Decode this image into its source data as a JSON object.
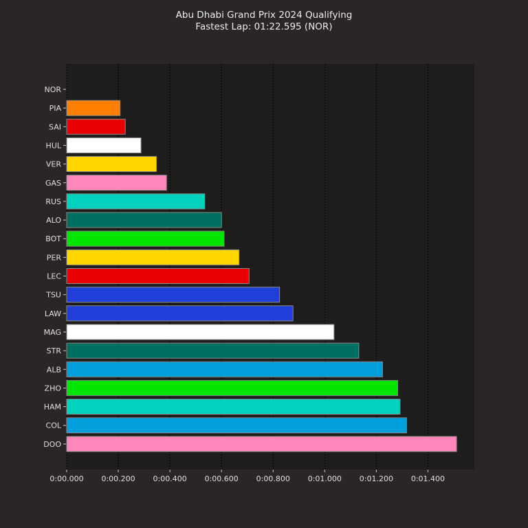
{
  "chart_data": {
    "type": "bar",
    "orientation": "horizontal",
    "title": "Abu Dhabi Grand Prix 2024 Qualifying",
    "subtitle": "Fastest Lap: 01:22.595 (NOR)",
    "xlabel": "",
    "ylabel": "",
    "xlim": [
      0,
      1.58
    ],
    "x_tick_values": [
      0,
      0.2,
      0.4,
      0.6,
      0.8,
      1.0,
      1.2,
      1.4
    ],
    "x_tick_labels": [
      "0:00.000",
      "0:00.200",
      "0:00.400",
      "0:00.600",
      "0:00.800",
      "0:01.000",
      "0:01.200",
      "0:01.400"
    ],
    "grid": "vertical dashed",
    "categories": [
      "NOR",
      "PIA",
      "SAI",
      "HUL",
      "VER",
      "GAS",
      "RUS",
      "ALO",
      "BOT",
      "PER",
      "LEC",
      "TSU",
      "LAW",
      "MAG",
      "STR",
      "ALB",
      "ZHO",
      "HAM",
      "COL",
      "DOO"
    ],
    "values": [
      0.0,
      0.207,
      0.227,
      0.288,
      0.348,
      0.387,
      0.535,
      0.6,
      0.61,
      0.668,
      0.707,
      0.825,
      0.877,
      1.036,
      1.132,
      1.224,
      1.283,
      1.292,
      1.317,
      1.511
    ],
    "colors": [
      "#FF8000",
      "#FF8000",
      "#E80000",
      "#FFFFFF",
      "#FFD700",
      "#FF87BC",
      "#00D2BE",
      "#006F62",
      "#00E400",
      "#FFD700",
      "#E80000",
      "#1F3FD8",
      "#1F3FD8",
      "#FFFFFF",
      "#006F62",
      "#009FDC",
      "#00E400",
      "#00D2BE",
      "#009FDC",
      "#FF87BC"
    ],
    "colors_plot_bg": "#1f1d1c",
    "colors_figure_bg": "#292625"
  }
}
